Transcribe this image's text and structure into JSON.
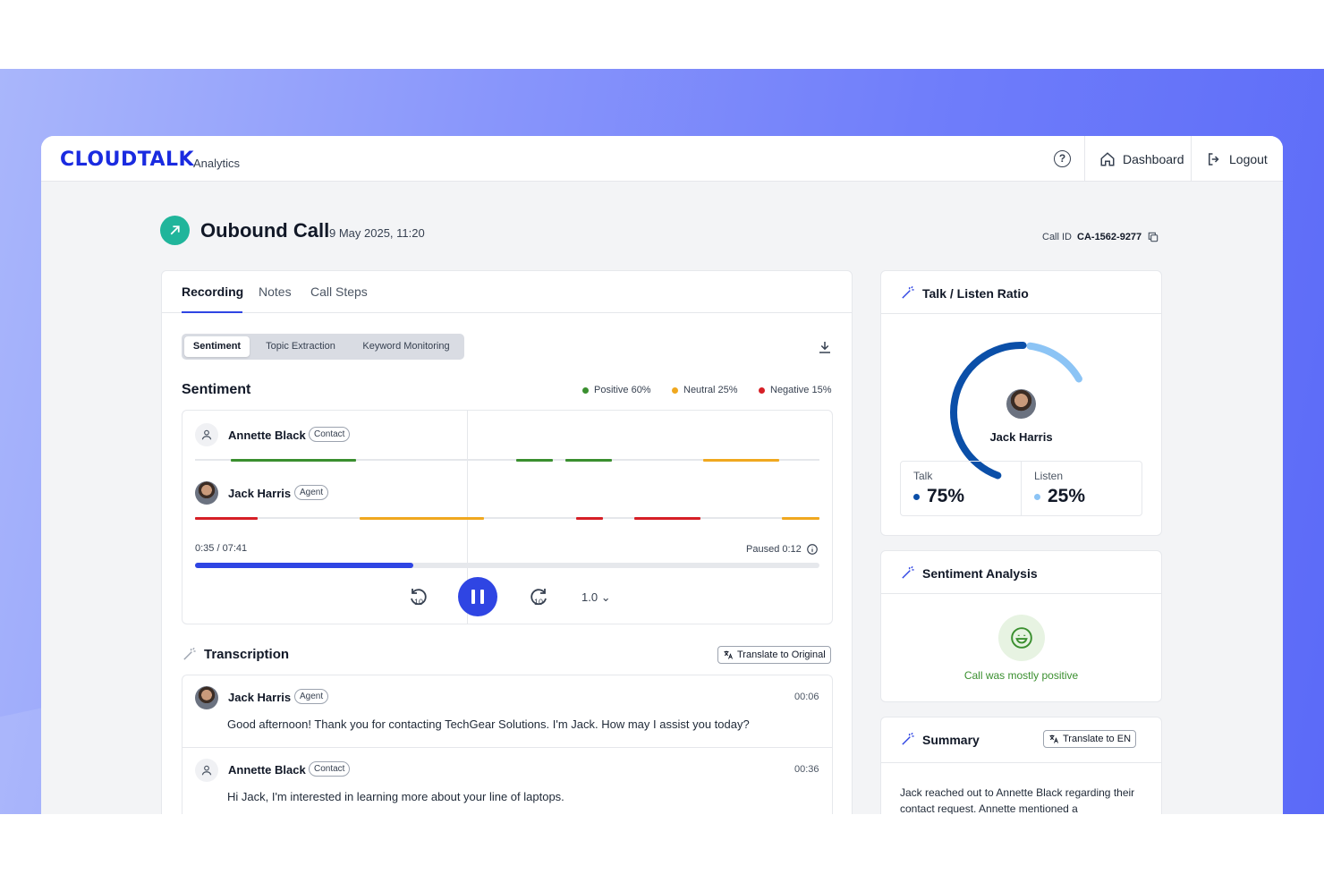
{
  "brand": {
    "logo": "CLOUDTALK",
    "sub": "Analytics"
  },
  "nav": {
    "dashboard": "Dashboard",
    "logout": "Logout",
    "help": "?"
  },
  "call": {
    "title": "Oubound Call",
    "date": "9 May 2025, 11:20",
    "id_label": "Call ID",
    "id_value": "CA-1562-9277"
  },
  "tabs": [
    "Recording",
    "Notes",
    "Call Steps"
  ],
  "analysis_tabs": [
    "Sentiment",
    "Topic Extraction",
    "Keyword Monitoring"
  ],
  "sentiment": {
    "heading": "Sentiment",
    "legend": [
      {
        "label": "Positive 60%",
        "color": "#3a8f2f"
      },
      {
        "label": "Neutral 25%",
        "color": "#f0a81f"
      },
      {
        "label": "Negative 15%",
        "color": "#d61f26"
      }
    ]
  },
  "participants": [
    {
      "name": "Annette Black",
      "role": "Contact"
    },
    {
      "name": "Jack Harris",
      "role": "Agent"
    }
  ],
  "player": {
    "time": "0:35 / 07:41",
    "paused": "Paused 0:12",
    "progress_fraction": 0.35,
    "skip_seconds": "10",
    "speed": "1.0"
  },
  "transcription": {
    "heading": "Transcription",
    "translate": "Translate to Original",
    "messages": [
      {
        "name": "Jack Harris",
        "role": "Agent",
        "time": "00:06",
        "text": "Good afternoon! Thank you for contacting TechGear Solutions. I'm Jack. How may I assist you today?"
      },
      {
        "name": "Annette Black",
        "role": "Contact",
        "time": "00:36",
        "text": "Hi Jack, I'm interested in learning more about your line of laptops."
      }
    ]
  },
  "talk_listen": {
    "heading": "Talk / Listen Ratio",
    "agent": "Jack Harris",
    "talk_label": "Talk",
    "talk_value": "75%",
    "talk_color": "#0b4fa8",
    "listen_label": "Listen",
    "listen_value": "25%",
    "listen_color": "#8cc4f5"
  },
  "sentiment_analysis": {
    "heading": "Sentiment Analysis",
    "text": "Call was mostly positive"
  },
  "summary": {
    "heading": "Summary",
    "translate": "Translate to EN",
    "text": "Jack reached out to Annette Black regarding their contact request. Annette mentioned a"
  }
}
